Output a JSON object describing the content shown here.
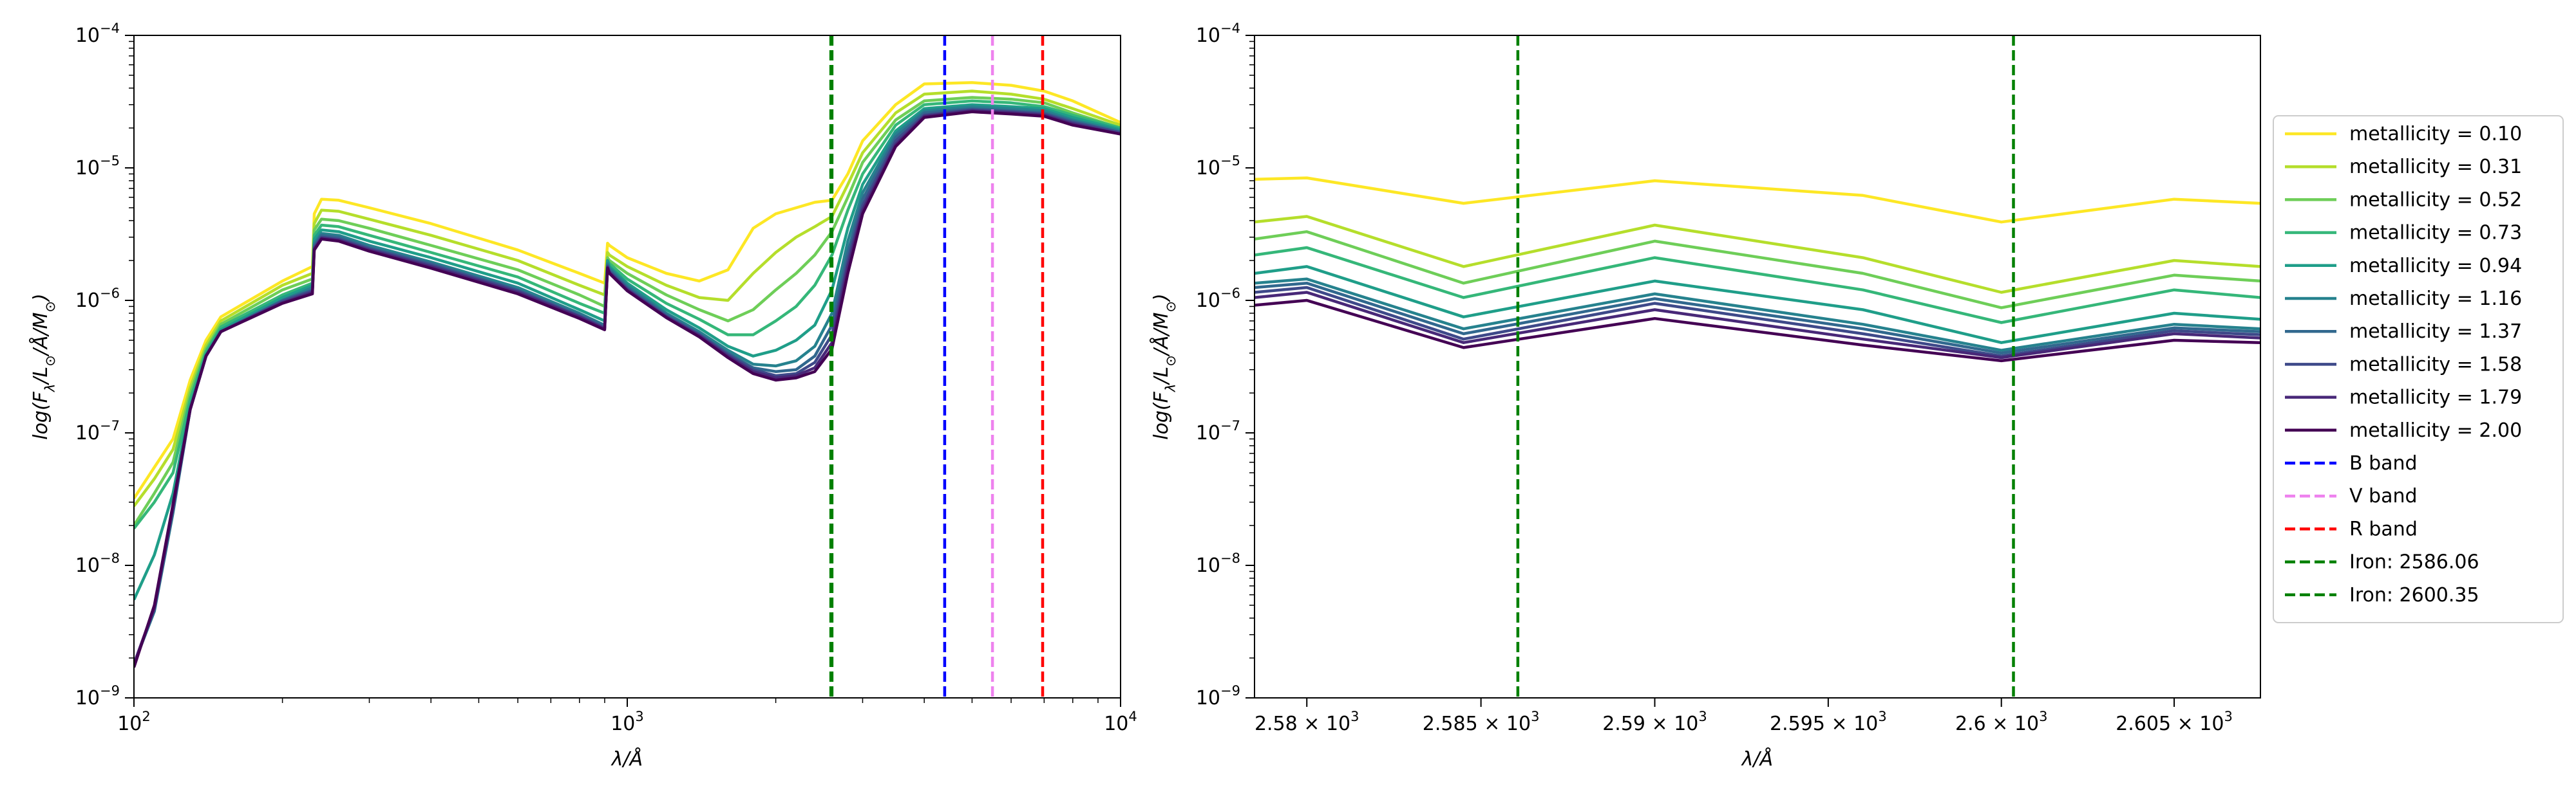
{
  "chart_data": [
    {
      "type": "line",
      "xscale": "log",
      "yscale": "log",
      "xlim": [
        100,
        10000
      ],
      "ylim": [
        1e-09,
        0.0001
      ],
      "xlabel": "λ/Å",
      "ylabel": "log(F_λ/L_⊙/Å/M_⊙)",
      "xticks": [
        {
          "value": 100,
          "base": "10",
          "exp": "2"
        },
        {
          "value": 1000,
          "base": "10",
          "exp": "3"
        },
        {
          "value": 10000,
          "base": "10",
          "exp": "4"
        }
      ],
      "yticks": [
        {
          "value": 1e-09,
          "base": "10",
          "exp": "−9"
        },
        {
          "value": 1e-08,
          "base": "10",
          "exp": "−8"
        },
        {
          "value": 1e-07,
          "base": "10",
          "exp": "−7"
        },
        {
          "value": 1e-06,
          "base": "10",
          "exp": "−6"
        },
        {
          "value": 1e-05,
          "base": "10",
          "exp": "−5"
        },
        {
          "value": 0.0001,
          "base": "10",
          "exp": "−4"
        }
      ],
      "vlines": [
        {
          "name": "Iron: 2586.06",
          "x": 2586.06,
          "color": "#008000"
        },
        {
          "name": "Iron: 2600.35",
          "x": 2600.35,
          "color": "#008000"
        },
        {
          "name": "B band",
          "x": 4400,
          "color": "#0000ff"
        },
        {
          "name": "V band",
          "x": 5500,
          "color": "#ee82ee"
        },
        {
          "name": "R band",
          "x": 6950,
          "color": "#ff0000"
        }
      ],
      "x": [
        100,
        110,
        120,
        130,
        140,
        150,
        200,
        230,
        232,
        240,
        260,
        300,
        400,
        600,
        800,
        900,
        912,
        920,
        1000,
        1200,
        1400,
        1600,
        1800,
        2000,
        2200,
        2400,
        2600,
        2800,
        3000,
        3500,
        4000,
        5000,
        6000,
        7000,
        8000,
        10000
      ],
      "series": [
        {
          "name": "metallicity = 0.10",
          "color": "#fde725",
          "values": [
            3.2e-08,
            5.5e-08,
            9e-08,
            2.5e-07,
            5e-07,
            7.5e-07,
            1.4e-06,
            1.8e-06,
            4.5e-06,
            5.8e-06,
            5.7e-06,
            5e-06,
            3.8e-06,
            2.4e-06,
            1.6e-06,
            1.35e-06,
            2.7e-06,
            2.6e-06,
            2.1e-06,
            1.6e-06,
            1.4e-06,
            1.7e-06,
            3.5e-06,
            4.5e-06,
            5e-06,
            5.5e-06,
            5.7e-06,
            9e-06,
            1.6e-05,
            3e-05,
            4.3e-05,
            4.4e-05,
            4.2e-05,
            3.8e-05,
            3.2e-05,
            2.2e-05
          ]
        },
        {
          "name": "metallicity = 0.31",
          "color": "#b5de2b",
          "values": [
            2.8e-08,
            4.5e-08,
            7.5e-08,
            2.2e-07,
            4.6e-07,
            7e-07,
            1.3e-06,
            1.6e-06,
            3.8e-06,
            4.8e-06,
            4.7e-06,
            4.1e-06,
            3.1e-06,
            2e-06,
            1.3e-06,
            1.1e-06,
            2.3e-06,
            2.2e-06,
            1.8e-06,
            1.3e-06,
            1.05e-06,
            1e-06,
            1.6e-06,
            2.3e-06,
            3e-06,
            3.6e-06,
            4.3e-06,
            7.5e-06,
            1.3e-05,
            2.6e-05,
            3.6e-05,
            3.8e-05,
            3.6e-05,
            3.3e-05,
            2.8e-05,
            2.1e-05
          ]
        },
        {
          "name": "metallicity = 0.52",
          "color": "#6ece58",
          "values": [
            2e-08,
            3.5e-08,
            6e-08,
            2e-07,
            4.3e-07,
            6.6e-07,
            1.2e-06,
            1.45e-06,
            3.4e-06,
            4.1e-06,
            4e-06,
            3.5e-06,
            2.6e-06,
            1.7e-06,
            1.1e-06,
            9e-07,
            2.1e-06,
            2e-06,
            1.6e-06,
            1.1e-06,
            8.5e-07,
            7e-07,
            8.5e-07,
            1.2e-06,
            1.6e-06,
            2.2e-06,
            3.3e-06,
            6e-06,
            1.1e-05,
            2.3e-05,
            3.2e-05,
            3.4e-05,
            3.3e-05,
            3.1e-05,
            2.6e-05,
            2e-05
          ]
        },
        {
          "name": "metallicity = 0.73",
          "color": "#35b779",
          "values": [
            1.9e-08,
            3e-08,
            5e-08,
            1.8e-07,
            4.1e-07,
            6.3e-07,
            1.1e-06,
            1.35e-06,
            3.1e-06,
            3.7e-06,
            3.6e-06,
            3.1e-06,
            2.3e-06,
            1.5e-06,
            9.5e-07,
            8e-07,
            2e-06,
            1.9e-06,
            1.45e-06,
            9.5e-07,
            7.2e-07,
            5.5e-07,
            5.5e-07,
            7e-07,
            9e-07,
            1.3e-06,
            2.2e-06,
            4.8e-06,
            9e-06,
            2.1e-05,
            3e-05,
            3.2e-05,
            3.1e-05,
            2.9e-05,
            2.5e-05,
            2e-05
          ]
        },
        {
          "name": "metallicity = 0.94",
          "color": "#1f9e89",
          "values": [
            5.5e-09,
            1.2e-08,
            3.5e-08,
            1.6e-07,
            3.9e-07,
            6e-07,
            1.05e-06,
            1.3e-06,
            2.9e-06,
            3.4e-06,
            3.3e-06,
            2.8e-06,
            2.1e-06,
            1.35e-06,
            8.5e-07,
            7e-07,
            2e-06,
            1.8e-06,
            1.35e-06,
            8.5e-07,
            6.2e-07,
            4.5e-07,
            3.8e-07,
            4.2e-07,
            5e-07,
            6.5e-07,
            1.2e-06,
            3.5e-06,
            7.5e-06,
            1.9e-05,
            2.8e-05,
            3e-05,
            2.9e-05,
            2.8e-05,
            2.4e-05,
            1.95e-05
          ]
        },
        {
          "name": "metallicity = 1.16",
          "color": "#26828e",
          "values": [
            1.8e-09,
            4.5e-09,
            2.5e-08,
            1.5e-07,
            3.8e-07,
            5.8e-07,
            1e-06,
            1.25e-06,
            2.7e-06,
            3.2e-06,
            3.1e-06,
            2.6e-06,
            1.95e-06,
            1.25e-06,
            8e-07,
            6.5e-07,
            1.9e-06,
            1.75e-06,
            1.3e-06,
            8e-07,
            5.8e-07,
            4.2e-07,
            3.3e-07,
            3.2e-07,
            3.5e-07,
            4.5e-07,
            8e-07,
            2.8e-06,
            6.5e-06,
            1.8e-05,
            2.7e-05,
            2.9e-05,
            2.8e-05,
            2.7e-05,
            2.3e-05,
            1.9e-05
          ]
        },
        {
          "name": "metallicity = 1.37",
          "color": "#31688e",
          "values": [
            1.8e-09,
            4.6e-09,
            2.6e-08,
            1.5e-07,
            3.8e-07,
            5.8e-07,
            1e-06,
            1.2e-06,
            2.6e-06,
            3.1e-06,
            3e-06,
            2.5e-06,
            1.9e-06,
            1.2e-06,
            7.8e-07,
            6.4e-07,
            1.85e-06,
            1.7e-06,
            1.25e-06,
            7.8e-07,
            5.6e-07,
            4e-07,
            3.1e-07,
            2.9e-07,
            3e-07,
            3.8e-07,
            6.5e-07,
            2.3e-06,
            5.8e-06,
            1.7e-05,
            2.6e-05,
            2.8e-05,
            2.7e-05,
            2.6e-05,
            2.25e-05,
            1.85e-05
          ]
        },
        {
          "name": "metallicity = 1.58",
          "color": "#3e4989",
          "values": [
            1.8e-09,
            4.7e-09,
            2.7e-08,
            1.5e-07,
            3.8e-07,
            5.8e-07,
            9.8e-07,
            1.18e-06,
            2.5e-06,
            3e-06,
            2.9e-06,
            2.45e-06,
            1.85e-06,
            1.18e-06,
            7.6e-07,
            6.2e-07,
            1.8e-06,
            1.65e-06,
            1.22e-06,
            7.6e-07,
            5.5e-07,
            3.9e-07,
            3e-07,
            2.7e-07,
            2.8e-07,
            3.4e-07,
            5.5e-07,
            2e-06,
            5.2e-06,
            1.6e-05,
            2.5e-05,
            2.75e-05,
            2.65e-05,
            2.55e-05,
            2.2e-05,
            1.85e-05
          ]
        },
        {
          "name": "metallicity = 1.79",
          "color": "#482878",
          "values": [
            1.8e-09,
            4.8e-09,
            2.8e-08,
            1.5e-07,
            3.8e-07,
            5.8e-07,
            9.6e-07,
            1.15e-06,
            2.45e-06,
            2.95e-06,
            2.85e-06,
            2.4e-06,
            1.8e-06,
            1.15e-06,
            7.5e-07,
            6.1e-07,
            1.78e-06,
            1.62e-06,
            1.2e-06,
            7.5e-07,
            5.4e-07,
            3.8e-07,
            2.9e-07,
            2.6e-07,
            2.7e-07,
            3.1e-07,
            4.8e-07,
            1.8e-06,
            4.8e-06,
            1.5e-05,
            2.45e-05,
            2.7e-05,
            2.6e-05,
            2.5e-05,
            2.15e-05,
            1.8e-05
          ]
        },
        {
          "name": "metallicity = 2.00",
          "color": "#440154",
          "values": [
            1.7e-09,
            5e-09,
            2.9e-08,
            1.5e-07,
            3.8e-07,
            5.8e-07,
            9.5e-07,
            1.12e-06,
            2.4e-06,
            2.9e-06,
            2.8e-06,
            2.35e-06,
            1.75e-06,
            1.12e-06,
            7.3e-07,
            6e-07,
            1.75e-06,
            1.6e-06,
            1.18e-06,
            7.4e-07,
            5.3e-07,
            3.7e-07,
            2.8e-07,
            2.5e-07,
            2.6e-07,
            2.9e-07,
            4.3e-07,
            1.6e-06,
            4.5e-06,
            1.45e-05,
            2.4e-05,
            2.65e-05,
            2.55e-05,
            2.45e-05,
            2.1e-05,
            1.8e-05
          ]
        }
      ]
    },
    {
      "type": "line",
      "xscale": "log",
      "yscale": "log",
      "xlim": [
        2578.5,
        2607.5
      ],
      "ylim": [
        1e-09,
        0.0001
      ],
      "xlabel": "λ/Å",
      "ylabel": "log(F_λ/L_⊙/Å/M_⊙)",
      "xticks": [
        {
          "value": 2580,
          "mant": "2.58",
          "exp": "3"
        },
        {
          "value": 2585,
          "mant": "2.585",
          "exp": "3"
        },
        {
          "value": 2590,
          "mant": "2.59",
          "exp": "3"
        },
        {
          "value": 2595,
          "mant": "2.595",
          "exp": "3"
        },
        {
          "value": 2600,
          "mant": "2.6",
          "exp": "3"
        },
        {
          "value": 2605,
          "mant": "2.605",
          "exp": "3"
        }
      ],
      "yticks": [
        {
          "value": 1e-09,
          "base": "10",
          "exp": "−9"
        },
        {
          "value": 1e-08,
          "base": "10",
          "exp": "−8"
        },
        {
          "value": 1e-07,
          "base": "10",
          "exp": "−7"
        },
        {
          "value": 1e-06,
          "base": "10",
          "exp": "−6"
        },
        {
          "value": 1e-05,
          "base": "10",
          "exp": "−5"
        },
        {
          "value": 0.0001,
          "base": "10",
          "exp": "−4"
        }
      ],
      "vlines": [
        {
          "name": "Iron: 2586.06",
          "x": 2586.06,
          "color": "#008000"
        },
        {
          "name": "Iron: 2600.35",
          "x": 2600.35,
          "color": "#008000"
        }
      ],
      "x": [
        2578.5,
        2580,
        2584.5,
        2590,
        2596,
        2600,
        2605,
        2607.5
      ],
      "series": [
        {
          "name": "metallicity = 0.10",
          "color": "#fde725",
          "values": [
            8.2e-06,
            8.4e-06,
            5.4e-06,
            8e-06,
            6.2e-06,
            3.9e-06,
            5.8e-06,
            5.4e-06
          ]
        },
        {
          "name": "metallicity = 0.31",
          "color": "#b5de2b",
          "values": [
            3.9e-06,
            4.3e-06,
            1.8e-06,
            3.7e-06,
            2.1e-06,
            1.15e-06,
            2e-06,
            1.8e-06
          ]
        },
        {
          "name": "metallicity = 0.52",
          "color": "#6ece58",
          "values": [
            2.9e-06,
            3.3e-06,
            1.35e-06,
            2.8e-06,
            1.6e-06,
            8.8e-07,
            1.55e-06,
            1.4e-06
          ]
        },
        {
          "name": "metallicity = 0.73",
          "color": "#35b779",
          "values": [
            2.2e-06,
            2.5e-06,
            1.05e-06,
            2.1e-06,
            1.2e-06,
            6.8e-07,
            1.2e-06,
            1.05e-06
          ]
        },
        {
          "name": "metallicity = 0.94",
          "color": "#1f9e89",
          "values": [
            1.6e-06,
            1.8e-06,
            7.5e-07,
            1.4e-06,
            8.5e-07,
            4.8e-07,
            8e-07,
            7.2e-07
          ]
        },
        {
          "name": "metallicity = 1.16",
          "color": "#26828e",
          "values": [
            1.35e-06,
            1.45e-06,
            6.1e-07,
            1.12e-06,
            6.6e-07,
            4.2e-07,
            6.6e-07,
            6.1e-07
          ]
        },
        {
          "name": "metallicity = 1.37",
          "color": "#31688e",
          "values": [
            1.25e-06,
            1.35e-06,
            5.6e-07,
            1.03e-06,
            6.1e-07,
            4e-07,
            6.2e-07,
            5.8e-07
          ]
        },
        {
          "name": "metallicity = 1.58",
          "color": "#3e4989",
          "values": [
            1.15e-06,
            1.25e-06,
            5.1e-07,
            9.5e-07,
            5.6e-07,
            3.8e-07,
            5.9e-07,
            5.5e-07
          ]
        },
        {
          "name": "metallicity = 1.79",
          "color": "#482878",
          "values": [
            1.05e-06,
            1.15e-06,
            4.8e-07,
            8.5e-07,
            5.1e-07,
            3.7e-07,
            5.6e-07,
            5.2e-07
          ]
        },
        {
          "name": "metallicity = 2.00",
          "color": "#440154",
          "values": [
            9.2e-07,
            1e-06,
            4.4e-07,
            7.3e-07,
            4.6e-07,
            3.5e-07,
            5e-07,
            4.8e-07
          ]
        }
      ]
    }
  ],
  "legend": {
    "placement": "right of right panel",
    "entries": [
      {
        "label": "metallicity = 0.10",
        "color": "#fde725",
        "style": "solid"
      },
      {
        "label": "metallicity = 0.31",
        "color": "#b5de2b",
        "style": "solid"
      },
      {
        "label": "metallicity = 0.52",
        "color": "#6ece58",
        "style": "solid"
      },
      {
        "label": "metallicity = 0.73",
        "color": "#35b779",
        "style": "solid"
      },
      {
        "label": "metallicity = 0.94",
        "color": "#1f9e89",
        "style": "solid"
      },
      {
        "label": "metallicity = 1.16",
        "color": "#26828e",
        "style": "solid"
      },
      {
        "label": "metallicity = 1.37",
        "color": "#31688e",
        "style": "solid"
      },
      {
        "label": "metallicity = 1.58",
        "color": "#3e4989",
        "style": "solid"
      },
      {
        "label": "metallicity = 1.79",
        "color": "#482878",
        "style": "solid"
      },
      {
        "label": "metallicity = 2.00",
        "color": "#440154",
        "style": "solid"
      },
      {
        "label": "B band",
        "color": "#0000ff",
        "style": "dashed"
      },
      {
        "label": "V band",
        "color": "#ee82ee",
        "style": "dashed"
      },
      {
        "label": "R band",
        "color": "#ff0000",
        "style": "dashed"
      },
      {
        "label": "Iron: 2586.06",
        "color": "#008000",
        "style": "dashed"
      },
      {
        "label": "Iron: 2600.35",
        "color": "#008000",
        "style": "dashed"
      }
    ]
  }
}
